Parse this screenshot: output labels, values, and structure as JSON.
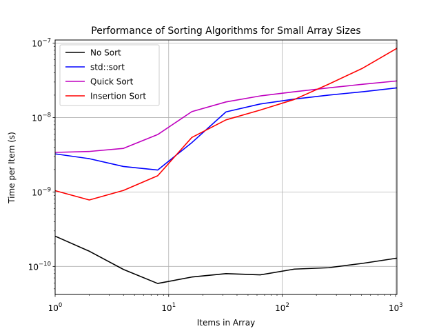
{
  "chart_data": {
    "type": "line",
    "title": "Performance of Sorting Algorithms for Small Array Sizes",
    "xlabel": "Items in Array",
    "ylabel": "Time per Item (s)",
    "x_scale": "log",
    "y_scale": "log",
    "xlim": [
      1,
      1024
    ],
    "ylim": [
      4.2e-11,
      1.1e-07
    ],
    "grid": true,
    "legend_position": "upper-left",
    "x_ticks": [
      {
        "base": "10",
        "exp": "0",
        "value": 1
      },
      {
        "base": "10",
        "exp": "1",
        "value": 10
      },
      {
        "base": "10",
        "exp": "2",
        "value": 100
      },
      {
        "base": "10",
        "exp": "3",
        "value": 1000
      }
    ],
    "y_ticks": [
      {
        "base": "10",
        "exp": "−10",
        "value": 1e-10
      },
      {
        "base": "10",
        "exp": "−9",
        "value": 1e-09
      },
      {
        "base": "10",
        "exp": "−8",
        "value": 1e-08
      },
      {
        "base": "10",
        "exp": "−7",
        "value": 1e-07
      }
    ],
    "x": [
      1,
      2,
      4,
      8,
      16,
      32,
      64,
      128,
      256,
      512,
      1024
    ],
    "series": [
      {
        "name": "No Sort",
        "color": "#000000",
        "values": [
          2.55e-10,
          1.6e-10,
          9.1e-11,
          5.9e-11,
          7.2e-11,
          8e-11,
          7.7e-11,
          9.2e-11,
          9.6e-11,
          1.1e-10,
          1.29e-10
        ]
      },
      {
        "name": "std::sort",
        "color": "#0000ff",
        "values": [
          3.25e-09,
          2.8e-09,
          2.2e-09,
          1.97e-09,
          4.6e-09,
          1.19e-08,
          1.52e-08,
          1.77e-08,
          2e-08,
          2.22e-08,
          2.5e-08
        ]
      },
      {
        "name": "Quick Sort",
        "color": "#bf00bf",
        "values": [
          3.4e-09,
          3.5e-09,
          3.85e-09,
          5.9e-09,
          1.2e-08,
          1.62e-08,
          1.95e-08,
          2.22e-08,
          2.5e-08,
          2.8e-08,
          3.1e-08
        ]
      },
      {
        "name": "Insertion Sort",
        "color": "#ff0000",
        "values": [
          1.04e-09,
          7.8e-10,
          1.05e-09,
          1.65e-09,
          5.4e-09,
          9.3e-09,
          1.26e-08,
          1.75e-08,
          2.8e-08,
          4.6e-08,
          8.5e-08
        ]
      }
    ]
  }
}
